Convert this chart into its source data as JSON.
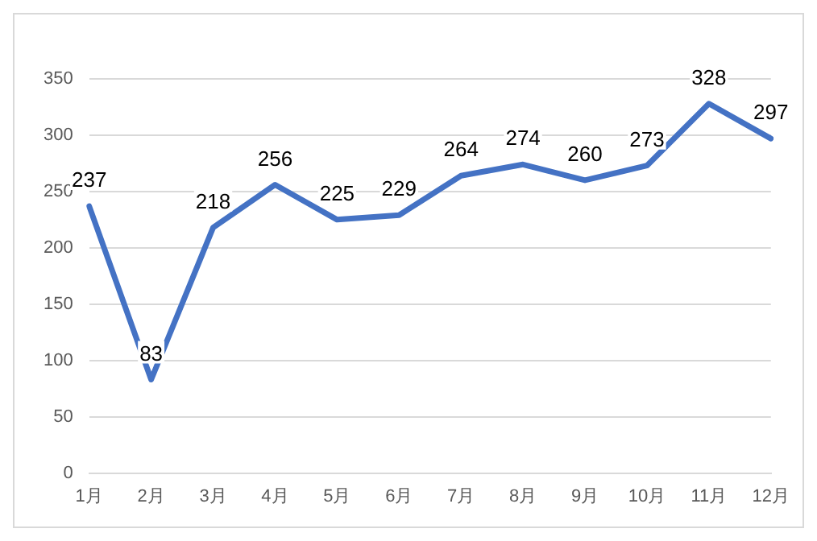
{
  "chart_data": {
    "type": "line",
    "categories": [
      "1月",
      "2月",
      "3月",
      "4月",
      "5月",
      "6月",
      "7月",
      "8月",
      "9月",
      "10月",
      "11月",
      "12月"
    ],
    "series": [
      {
        "color": "#4472c4",
        "values": [
          237,
          83,
          218,
          256,
          225,
          229,
          264,
          274,
          260,
          273,
          328,
          297
        ]
      }
    ],
    "ylim": [
      0,
      350
    ],
    "yticks": [
      0,
      50,
      100,
      150,
      200,
      250,
      300,
      350
    ],
    "grid": "y",
    "data_labels": true,
    "legend": false,
    "marker": "none"
  }
}
